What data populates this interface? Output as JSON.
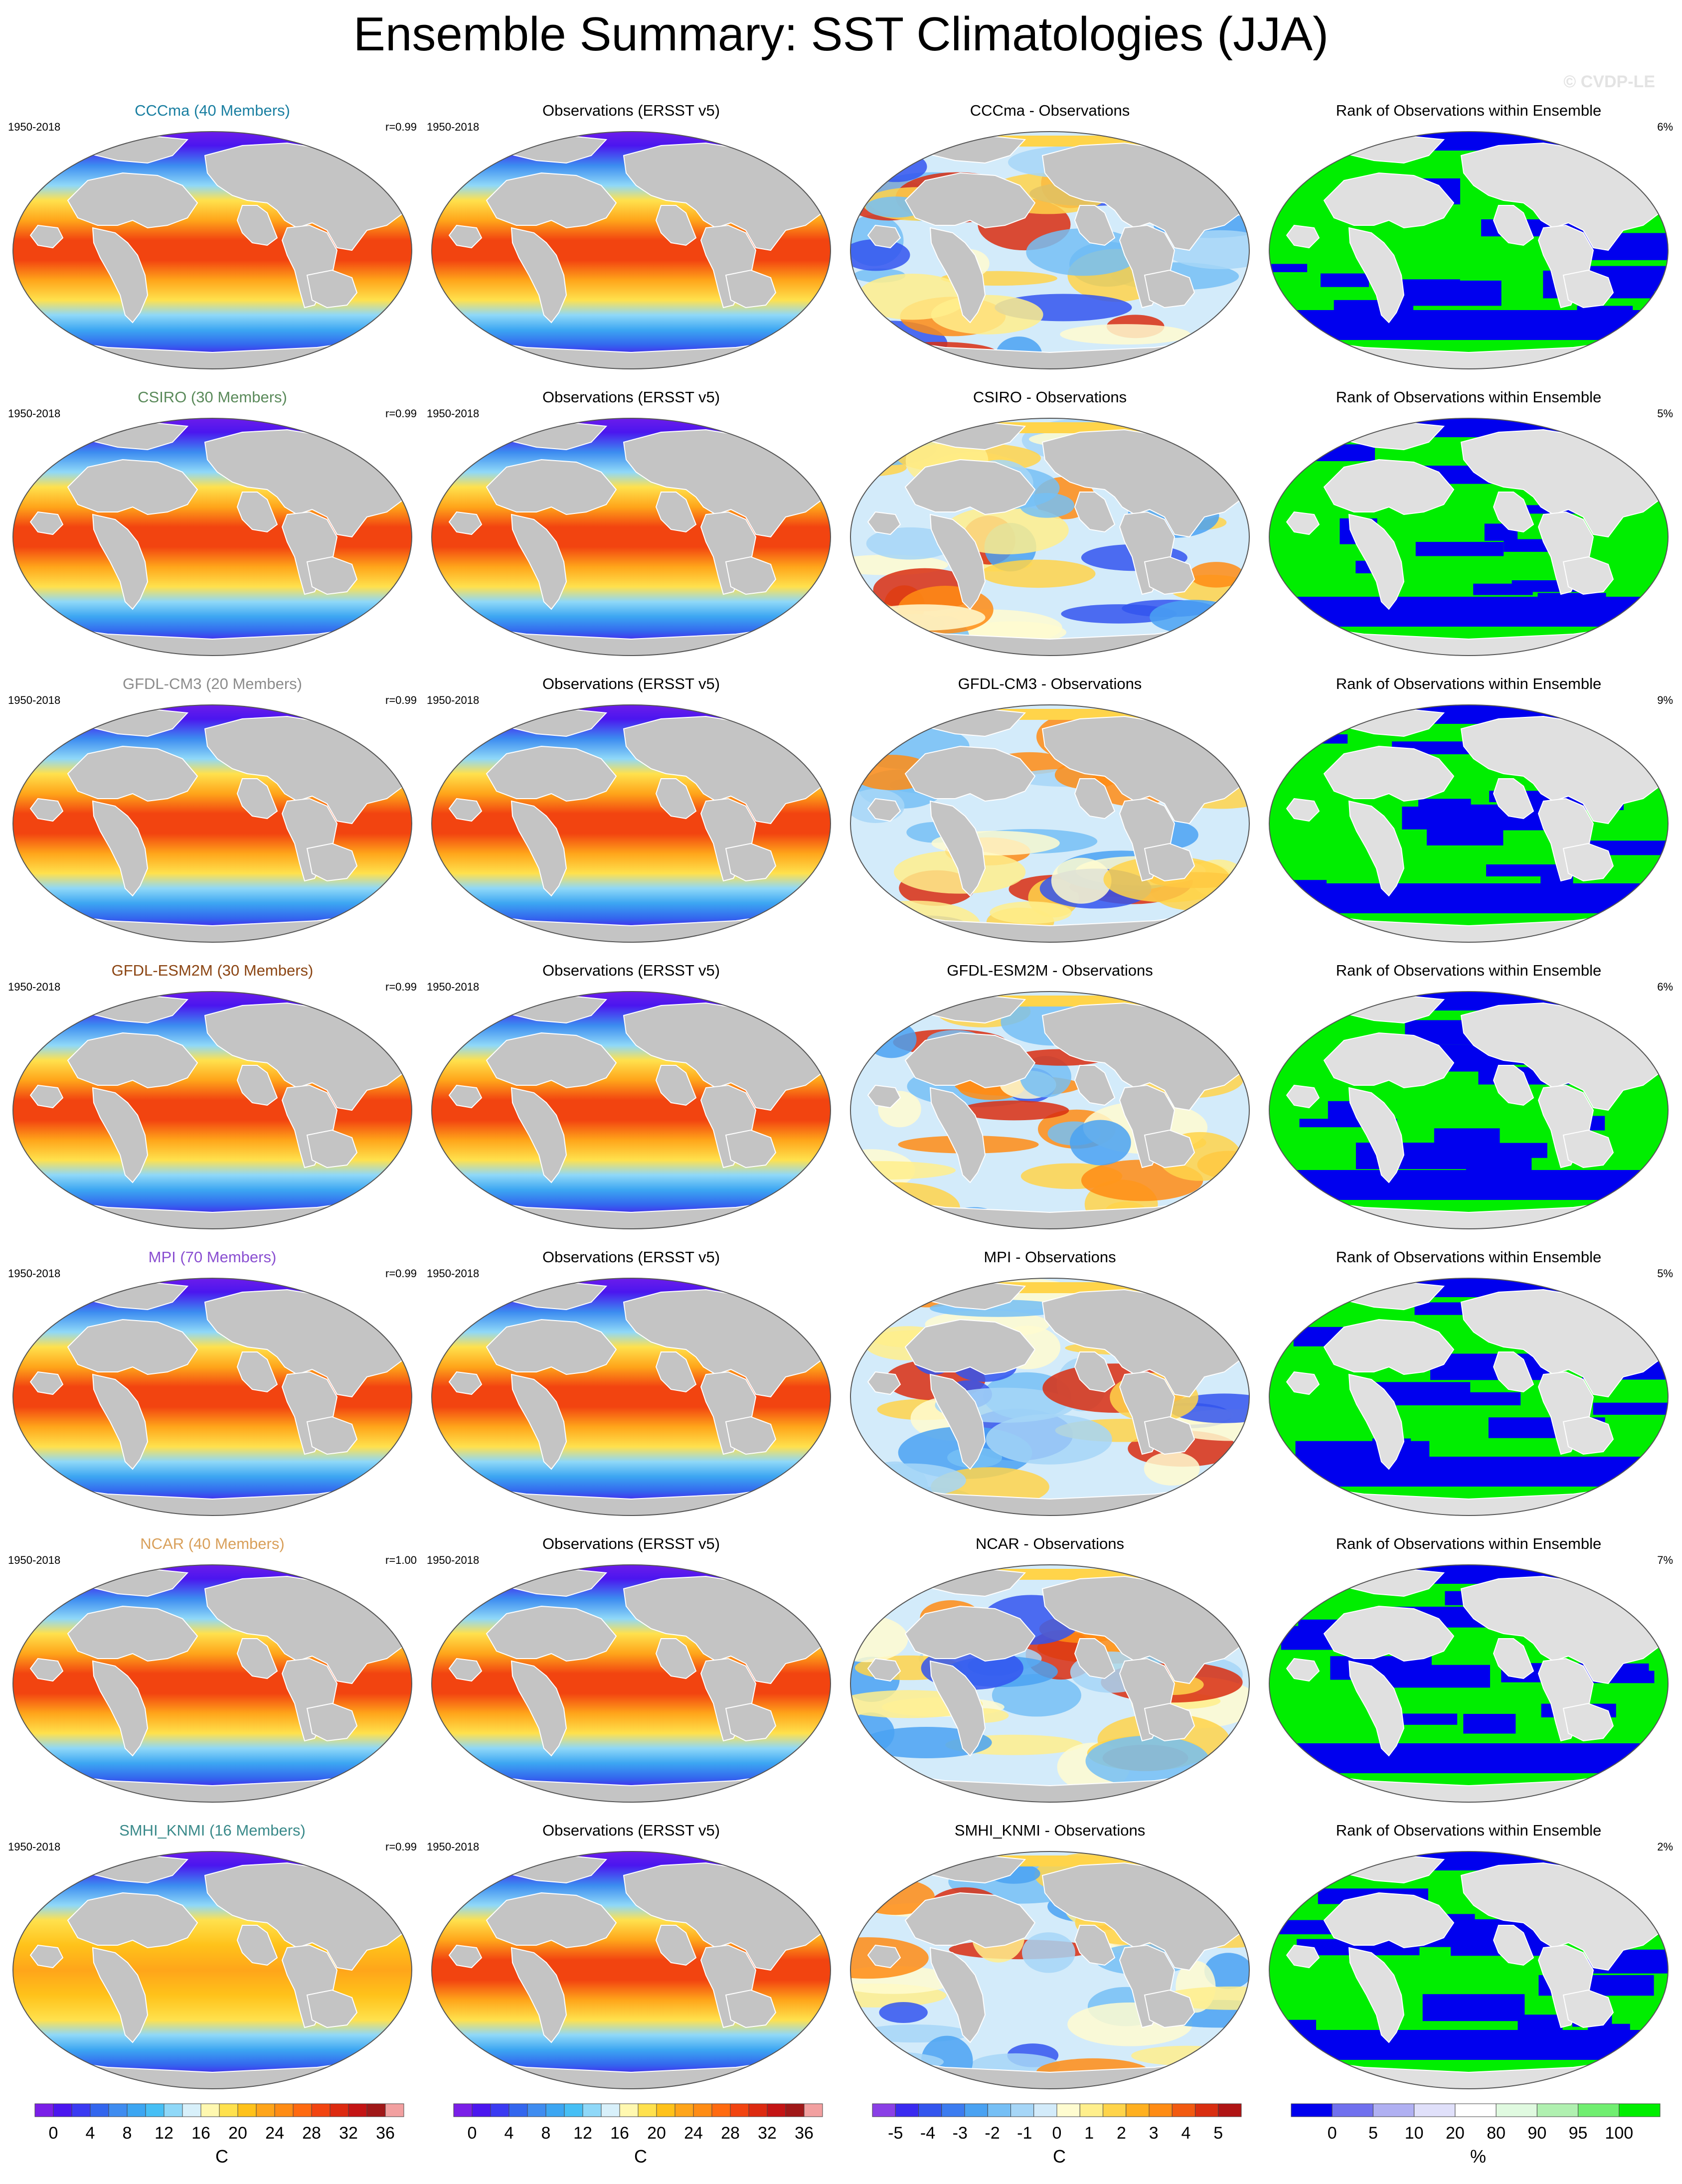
{
  "title": "Ensemble Summary: SST Climatologies (JJA)",
  "watermark": "© CVDP-LE",
  "period": "1950-2018",
  "obs_title": "Observations (ERSST v5)",
  "rank_title": "Rank of Observations within Ensemble",
  "rows": [
    {
      "model": "CCCma (40 Members)",
      "model_color": "#1a7fa1",
      "r": "r=0.99",
      "diff_title": "CCCma - Observations",
      "rank_pct": "6%"
    },
    {
      "model": "CSIRO (30 Members)",
      "model_color": "#5a8a5a",
      "r": "r=0.99",
      "diff_title": "CSIRO - Observations",
      "rank_pct": "5%"
    },
    {
      "model": "GFDL-CM3 (20 Members)",
      "model_color": "#8c8c8c",
      "r": "r=0.99",
      "diff_title": "GFDL-CM3 - Observations",
      "rank_pct": "9%"
    },
    {
      "model": "GFDL-ESM2M (30 Members)",
      "model_color": "#8b4513",
      "r": "r=0.99",
      "diff_title": "GFDL-ESM2M - Observations",
      "rank_pct": "6%"
    },
    {
      "model": "MPI (70 Members)",
      "model_color": "#8a4fd1",
      "r": "r=0.99",
      "diff_title": "MPI - Observations",
      "rank_pct": "5%"
    },
    {
      "model": "NCAR (40 Members)",
      "model_color": "#d9a05b",
      "r": "r=1.00",
      "diff_title": "NCAR - Observations",
      "rank_pct": "7%"
    },
    {
      "model": "SMHI_KNMI (16 Members)",
      "model_color": "#3a8a8a",
      "r": "r=0.99",
      "diff_title": "SMHI_KNMI - Observations",
      "rank_pct": "2%"
    }
  ],
  "colorbars": [
    {
      "unit": "C",
      "labels": [
        "0",
        "4",
        "8",
        "12",
        "16",
        "20",
        "24",
        "28",
        "32",
        "36"
      ],
      "colors": [
        "#7a1fe8",
        "#4b16ef",
        "#3a3af2",
        "#3366ee",
        "#3f8cf0",
        "#3ca6f2",
        "#46bff5",
        "#8fd8f8",
        "#d8f0fa",
        "#fff8b0",
        "#ffe14d",
        "#ffc21a",
        "#ffa51a",
        "#ff8c14",
        "#ff6a10",
        "#f24410",
        "#dd2a10",
        "#c41414",
        "#a01818",
        "#f2a0a0"
      ]
    },
    {
      "unit": "C",
      "labels": [
        "0",
        "4",
        "8",
        "12",
        "16",
        "20",
        "24",
        "28",
        "32",
        "36"
      ],
      "colors": [
        "#7a1fe8",
        "#4b16ef",
        "#3a3af2",
        "#3366ee",
        "#3f8cf0",
        "#3ca6f2",
        "#46bff5",
        "#8fd8f8",
        "#d8f0fa",
        "#fff8b0",
        "#ffe14d",
        "#ffc21a",
        "#ffa51a",
        "#ff8c14",
        "#ff6a10",
        "#f24410",
        "#dd2a10",
        "#c41414",
        "#a01818",
        "#f2a0a0"
      ]
    },
    {
      "unit": "C",
      "labels": [
        "-5",
        "-4",
        "-3",
        "-2",
        "-1",
        "0",
        "1",
        "2",
        "3",
        "4",
        "5"
      ],
      "colors": [
        "#8a3fe6",
        "#3a2af0",
        "#3355ee",
        "#3c7cf0",
        "#4aa2f2",
        "#76bff5",
        "#a6d6f7",
        "#d3ebfa",
        "#fffcd0",
        "#ffef8c",
        "#ffd44a",
        "#ffb020",
        "#ff8c14",
        "#f25a10",
        "#d92e10",
        "#b01414"
      ]
    },
    {
      "unit": "%",
      "labels": [
        "0",
        "5",
        "10",
        "20",
        "80",
        "90",
        "95",
        "100"
      ],
      "colors": [
        "#0000ee",
        "#7070ee",
        "#b0b0f2",
        "#e0e0fa",
        "#ffffff",
        "#e0fae0",
        "#b0f0b0",
        "#70ee70",
        "#00ee00"
      ]
    }
  ]
}
